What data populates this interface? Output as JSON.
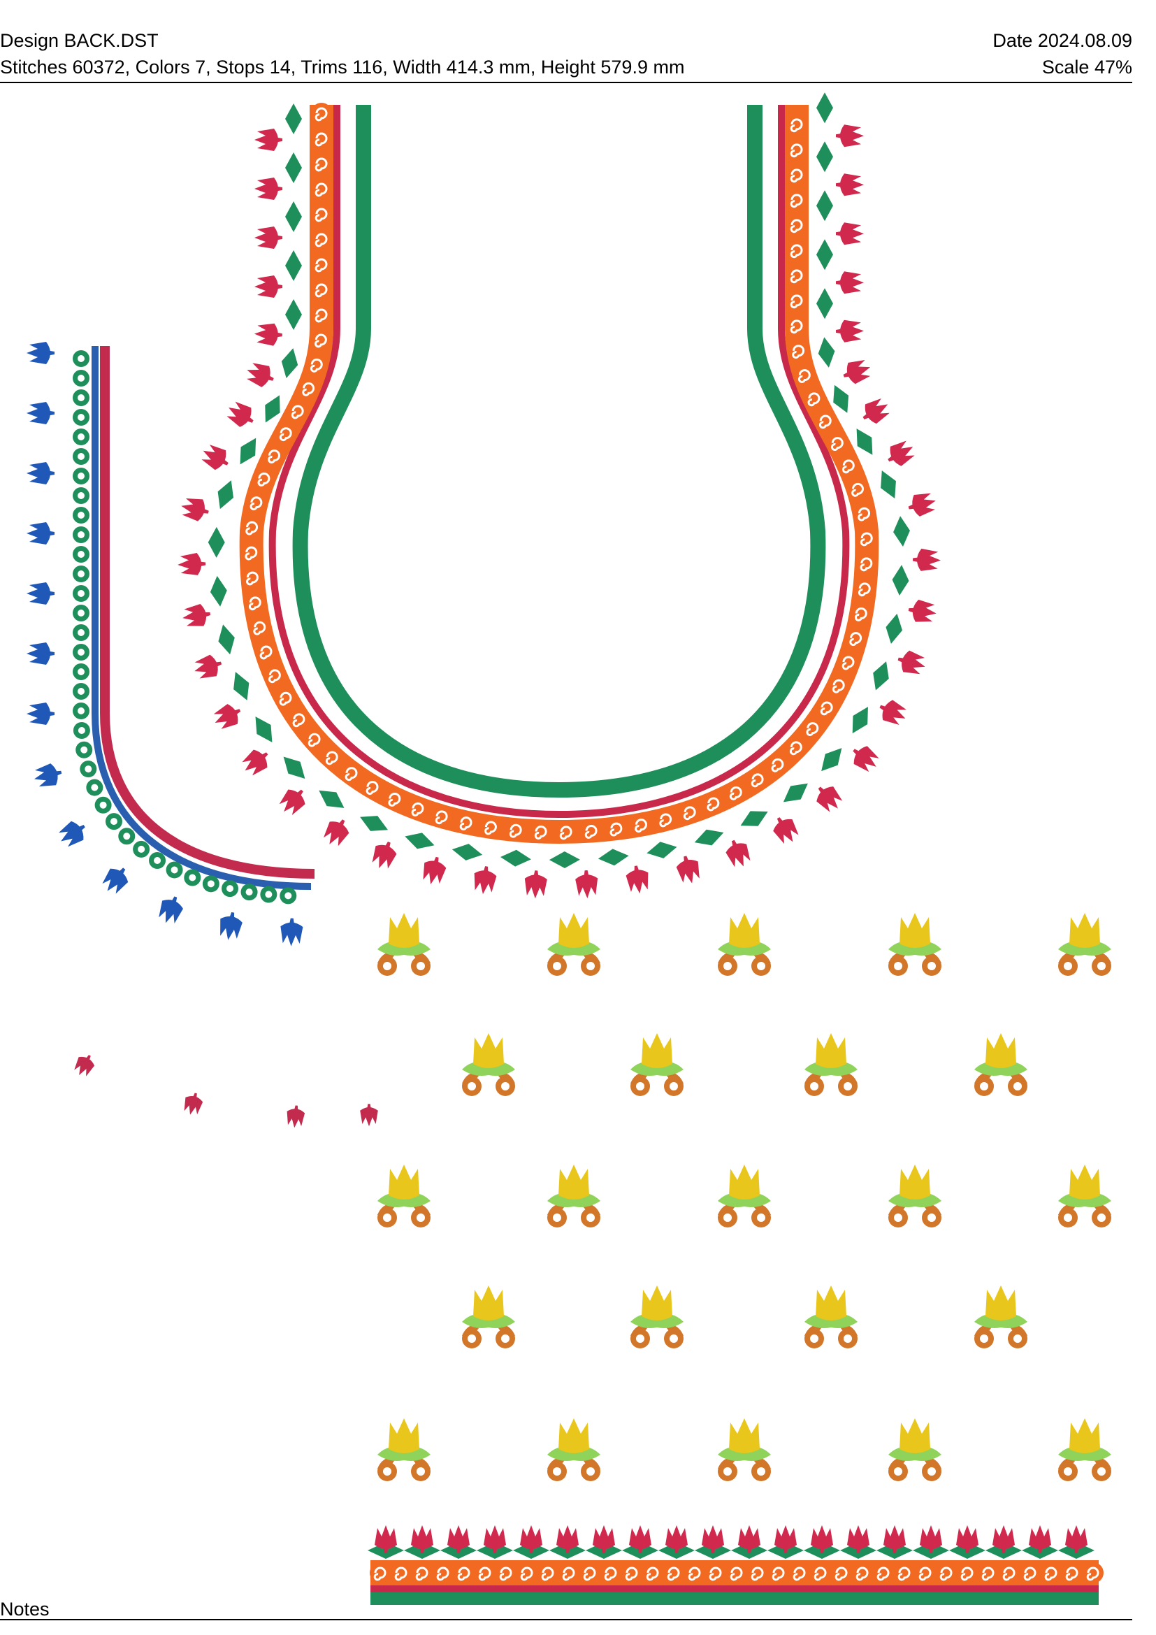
{
  "header": {
    "design": "Design BACK.DST",
    "date": "Date 2024.08.09",
    "stats": "Stitches 60372, Colors 7, Stops 14, Trims 116, Width 414.3 mm, Height 579.9 mm",
    "scale": "Scale 47%"
  },
  "footer": {
    "notes": "Notes"
  },
  "design": {
    "neckline_colors": [
      "#1e8f5a",
      "#c8284a",
      "#f26a21",
      "#d1284d"
    ],
    "sleeve_colors": [
      "#c22a4e",
      "#2a5fb0",
      "#1e8f5a",
      "#2058b8"
    ],
    "motif_colors": [
      "#e8c61c",
      "#8fd35a",
      "#d2772a"
    ],
    "motif_rows": [
      5,
      4,
      5,
      4,
      5
    ],
    "border_colors": [
      "#1e8f5a",
      "#c8284a",
      "#f26a21",
      "#d1284d"
    ]
  }
}
